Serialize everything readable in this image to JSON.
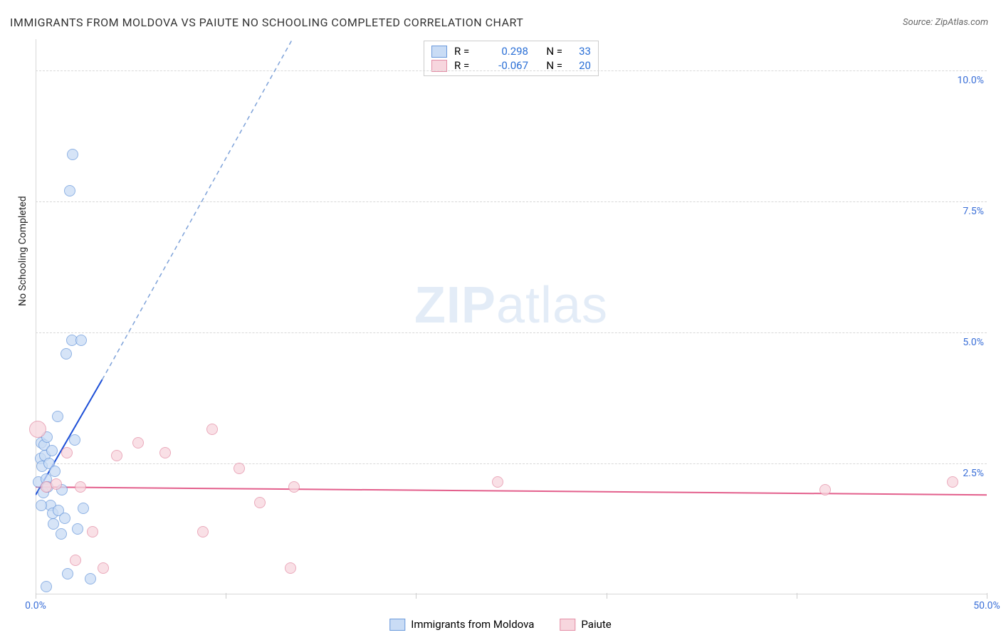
{
  "title": "IMMIGRANTS FROM MOLDOVA VS PAIUTE NO SCHOOLING COMPLETED CORRELATION CHART",
  "source_prefix": "Source: ",
  "source_name": "ZipAtlas.com",
  "ylabel": "No Schooling Completed",
  "watermark_a": "ZIP",
  "watermark_b": "atlas",
  "chart": {
    "type": "scatter",
    "background": "#ffffff",
    "grid_color": "#d8d8d8",
    "grid_dash": "4,3",
    "xlim": [
      0,
      50
    ],
    "ylim": [
      0,
      10.6
    ],
    "x_ticks": [
      0,
      10,
      20,
      30,
      40,
      50
    ],
    "x_tick_labels": [
      "0.0%",
      "",
      "",
      "",
      "",
      "50.0%"
    ],
    "y_ticks": [
      2.5,
      5.0,
      7.5,
      10.0
    ],
    "y_tick_labels": [
      "2.5%",
      "5.0%",
      "7.5%",
      "10.0%"
    ],
    "series": [
      {
        "name": "Immigrants from Moldova",
        "color_fill": "#c9dcf5",
        "color_stroke": "#6a99db",
        "marker_radius": 8,
        "marker_opacity": 0.75,
        "correlation_r": "0.298",
        "correlation_n": "33",
        "trend": {
          "x0": 0,
          "y0": 1.9,
          "x1": 3.5,
          "y1": 4.1,
          "x2": 13.5,
          "y2": 10.6,
          "solid_color": "#1d4fd7",
          "dash_color": "#7ea2d9",
          "width": 2
        },
        "points": [
          {
            "x": 0.15,
            "y": 2.15
          },
          {
            "x": 0.25,
            "y": 2.6
          },
          {
            "x": 0.3,
            "y": 2.9
          },
          {
            "x": 0.35,
            "y": 2.45
          },
          {
            "x": 0.4,
            "y": 1.95
          },
          {
            "x": 0.45,
            "y": 2.85
          },
          {
            "x": 0.5,
            "y": 2.65
          },
          {
            "x": 0.55,
            "y": 2.2
          },
          {
            "x": 0.6,
            "y": 3.0
          },
          {
            "x": 0.65,
            "y": 2.05
          },
          {
            "x": 0.7,
            "y": 2.5
          },
          {
            "x": 0.8,
            "y": 1.7
          },
          {
            "x": 0.85,
            "y": 2.75
          },
          {
            "x": 0.9,
            "y": 1.55
          },
          {
            "x": 0.95,
            "y": 1.35
          },
          {
            "x": 1.0,
            "y": 2.35
          },
          {
            "x": 1.15,
            "y": 3.4
          },
          {
            "x": 1.2,
            "y": 1.6
          },
          {
            "x": 1.35,
            "y": 1.15
          },
          {
            "x": 1.4,
            "y": 2.0
          },
          {
            "x": 1.55,
            "y": 1.45
          },
          {
            "x": 1.6,
            "y": 4.6
          },
          {
            "x": 1.7,
            "y": 0.4
          },
          {
            "x": 1.8,
            "y": 7.7
          },
          {
            "x": 1.9,
            "y": 4.85
          },
          {
            "x": 1.95,
            "y": 8.4
          },
          {
            "x": 2.05,
            "y": 2.95
          },
          {
            "x": 2.2,
            "y": 1.25
          },
          {
            "x": 2.4,
            "y": 4.85
          },
          {
            "x": 2.5,
            "y": 1.65
          },
          {
            "x": 2.9,
            "y": 0.3
          },
          {
            "x": 0.3,
            "y": 1.7
          },
          {
            "x": 0.55,
            "y": 0.15
          }
        ]
      },
      {
        "name": "Paiute",
        "color_fill": "#f7d6de",
        "color_stroke": "#e48ea6",
        "marker_radius": 8,
        "marker_opacity": 0.75,
        "correlation_r": "-0.067",
        "correlation_n": "20",
        "trend": {
          "x0": 0,
          "y0": 2.05,
          "x1": 50,
          "y1": 1.9,
          "solid_color": "#e35f8c",
          "width": 2
        },
        "points": [
          {
            "x": 0.1,
            "y": 3.15,
            "r": 12
          },
          {
            "x": 0.55,
            "y": 2.05
          },
          {
            "x": 1.1,
            "y": 2.1
          },
          {
            "x": 1.65,
            "y": 2.7
          },
          {
            "x": 2.1,
            "y": 0.65
          },
          {
            "x": 2.35,
            "y": 2.05
          },
          {
            "x": 3.0,
            "y": 1.2
          },
          {
            "x": 3.55,
            "y": 0.5
          },
          {
            "x": 4.25,
            "y": 2.65
          },
          {
            "x": 5.4,
            "y": 2.9
          },
          {
            "x": 6.8,
            "y": 2.7
          },
          {
            "x": 8.8,
            "y": 1.2
          },
          {
            "x": 9.3,
            "y": 3.15
          },
          {
            "x": 10.7,
            "y": 2.4
          },
          {
            "x": 11.8,
            "y": 1.75
          },
          {
            "x": 13.4,
            "y": 0.5
          },
          {
            "x": 13.6,
            "y": 2.05
          },
          {
            "x": 24.3,
            "y": 2.15
          },
          {
            "x": 41.5,
            "y": 2.0
          },
          {
            "x": 48.2,
            "y": 2.15
          }
        ]
      }
    ],
    "legend_top": {
      "r_label": "R =",
      "n_label": "N ="
    },
    "legend_bottom_swatch_border": "#6a99db"
  }
}
